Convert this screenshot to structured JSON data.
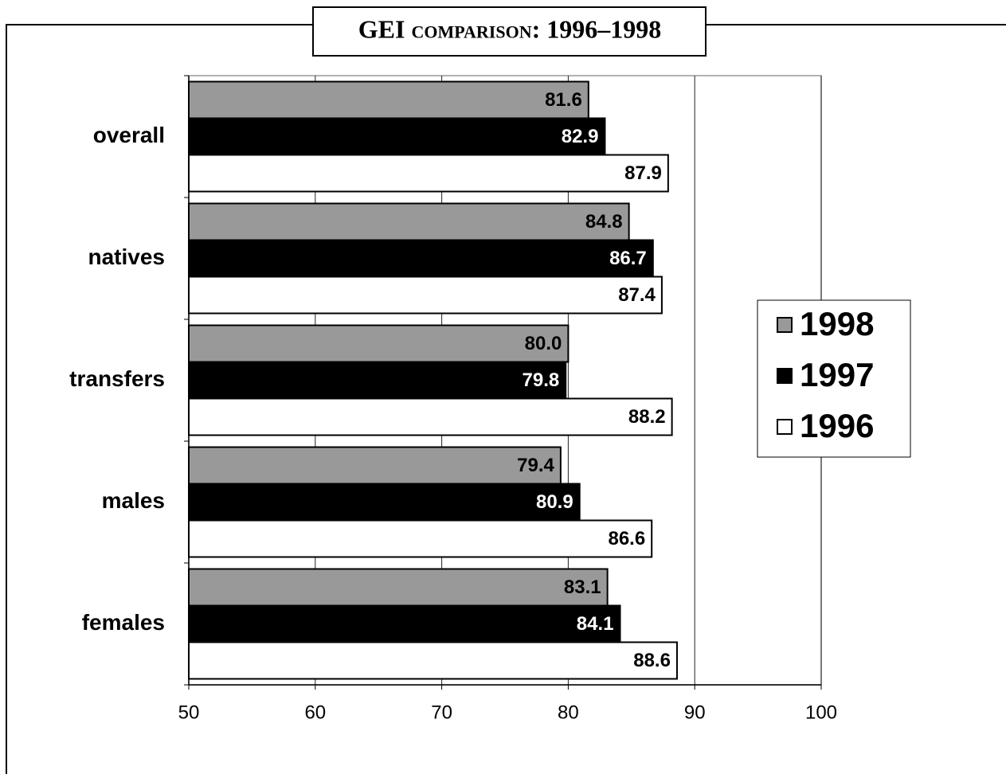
{
  "chart_data": {
    "type": "bar",
    "orientation": "horizontal",
    "title": "GEI comparison: 1996–1998",
    "categories": [
      "overall",
      "natives",
      "transfers",
      "males",
      "females"
    ],
    "series": [
      {
        "name": "1998",
        "color": "#999999",
        "values": [
          81.6,
          84.8,
          80.0,
          79.4,
          83.1
        ],
        "value_labels": [
          "81.6",
          "84.8",
          "80.0",
          "79.4",
          "83.1"
        ]
      },
      {
        "name": "1997",
        "color": "#000000",
        "values": [
          82.9,
          86.7,
          79.8,
          80.9,
          84.1
        ],
        "value_labels": [
          "82.9",
          "86.7",
          "79.8",
          "80.9",
          "84.1"
        ]
      },
      {
        "name": "1996",
        "color": "#ffffff",
        "values": [
          87.9,
          87.4,
          88.2,
          86.6,
          88.6
        ],
        "value_labels": [
          "87.9",
          "87.4",
          "88.2",
          "86.6",
          "88.6"
        ]
      }
    ],
    "xlim": [
      50,
      100
    ],
    "xticks": [
      50,
      60,
      70,
      80,
      90,
      100
    ],
    "grid": true,
    "legend": "right"
  }
}
